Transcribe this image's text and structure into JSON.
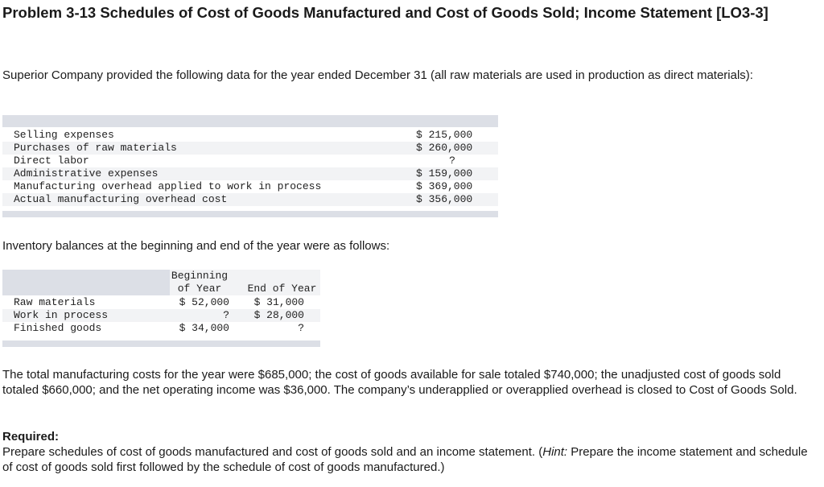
{
  "header": {
    "title": "Problem 3-13 Schedules of Cost of Goods Manufactured and Cost of Goods Sold; Income Statement [LO3-3]"
  },
  "intro": "Superior Company provided the following data for the year ended December 31 (all raw materials are used in production as direct materials):",
  "data_table": {
    "rows": [
      [
        "Selling expenses",
        "$ 215,000"
      ],
      [
        "Purchases of raw materials",
        "$ 260,000"
      ],
      [
        "Direct labor",
        "?"
      ],
      [
        "Administrative expenses",
        "$ 159,000"
      ],
      [
        "Manufacturing overhead applied to work in process",
        "$ 369,000"
      ],
      [
        "Actual manufacturing overhead cost",
        "$ 356,000"
      ]
    ]
  },
  "inventory_intro": "Inventory balances at the beginning and end of the year were as follows:",
  "inventory_table": {
    "headers": [
      [
        "Beginning",
        "of Year"
      ],
      [
        "End of Year"
      ]
    ],
    "rows": [
      [
        "Raw materials",
        "$ 52,000",
        "$ 31,000"
      ],
      [
        "Work in process",
        "?",
        "$ 28,000"
      ],
      [
        "Finished goods",
        "$ 34,000",
        "?"
      ]
    ]
  },
  "paragraph": "The total manufacturing costs for the year were $685,000; the cost of goods available for sale totaled $740,000; the unadjusted cost of goods sold totaled $660,000; and the net operating income was $36,000. The company’s underapplied or overapplied overhead is closed to Cost of Goods Sold.",
  "required": {
    "label": "Required:",
    "text_before": "Prepare schedules of cost of goods manufactured and cost of goods sold and an income statement. (",
    "hint": "Hint:",
    "text_after": " Prepare the income statement and schedule of cost of goods sold first followed by the schedule of cost of goods manufactured.)"
  }
}
